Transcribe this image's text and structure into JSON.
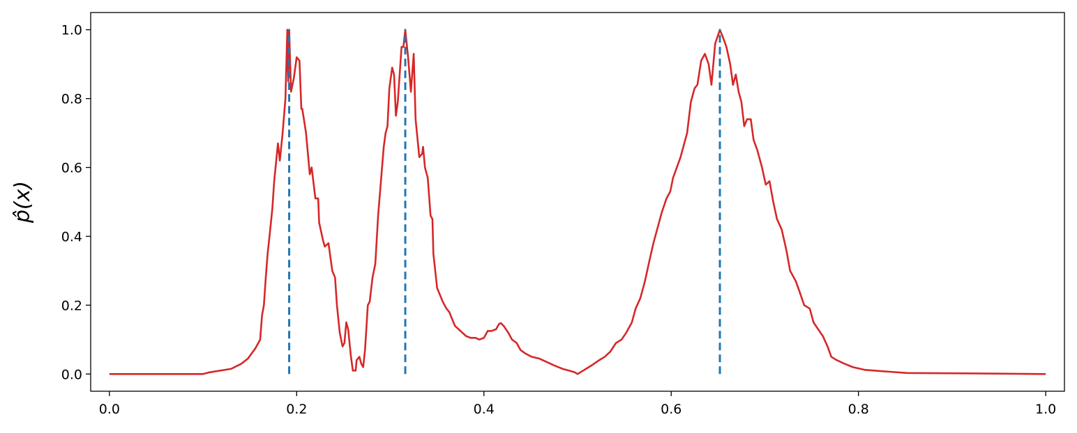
{
  "chart_data": {
    "type": "line",
    "ylabel": "p̂(x)",
    "x": [
      0,
      0.1,
      0.107,
      0.13,
      0.141,
      0.148,
      0.156,
      0.161,
      0.163,
      0.165,
      0.167,
      0.169,
      0.171,
      0.174,
      0.176,
      0.18,
      0.182,
      0.185,
      0.188,
      0.19,
      0.191,
      0.192,
      0.194,
      0.197,
      0.2,
      0.203,
      0.205,
      0.206,
      0.21,
      0.214,
      0.216,
      0.22,
      0.223,
      0.224,
      0.228,
      0.23,
      0.234,
      0.236,
      0.238,
      0.241,
      0.243,
      0.246,
      0.249,
      0.251,
      0.253,
      0.255,
      0.258,
      0.26,
      0.263,
      0.264,
      0.267,
      0.269,
      0.271,
      0.273,
      0.276,
      0.278,
      0.281,
      0.284,
      0.287,
      0.29,
      0.293,
      0.295,
      0.297,
      0.299,
      0.302,
      0.304,
      0.306,
      0.308,
      0.312,
      0.314,
      0.316,
      0.319,
      0.322,
      0.325,
      0.327,
      0.331,
      0.334,
      0.335,
      0.337,
      0.34,
      0.343,
      0.345,
      0.346,
      0.348,
      0.35,
      0.353,
      0.356,
      0.36,
      0.363,
      0.366,
      0.369,
      0.373,
      0.377,
      0.381,
      0.386,
      0.391,
      0.395,
      0.4,
      0.404,
      0.408,
      0.413,
      0.416,
      0.418,
      0.421,
      0.426,
      0.43,
      0.435,
      0.439,
      0.444,
      0.451,
      0.459,
      0.467,
      0.475,
      0.484,
      0.491,
      0.497,
      0.5,
      0.503,
      0.509,
      0.515,
      0.523,
      0.529,
      0.535,
      0.541,
      0.547,
      0.552,
      0.558,
      0.562,
      0.567,
      0.572,
      0.576,
      0.581,
      0.585,
      0.59,
      0.595,
      0.599,
      0.602,
      0.606,
      0.61,
      0.614,
      0.617,
      0.621,
      0.625,
      0.628,
      0.632,
      0.636,
      0.64,
      0.643,
      0.647,
      0.652,
      0.655,
      0.659,
      0.663,
      0.666,
      0.669,
      0.672,
      0.675,
      0.678,
      0.681,
      0.685,
      0.688,
      0.692,
      0.697,
      0.701,
      0.705,
      0.709,
      0.713,
      0.718,
      0.723,
      0.727,
      0.733,
      0.737,
      0.742,
      0.748,
      0.752,
      0.757,
      0.762,
      0.767,
      0.771,
      0.777,
      0.785,
      0.794,
      0.807,
      0.826,
      0.852,
      0.911,
      1.0
    ],
    "series": [
      {
        "color": "#d62728",
        "values": [
          0,
          0,
          0.005,
          0.015,
          0.03,
          0.045,
          0.075,
          0.1,
          0.17,
          0.2,
          0.28,
          0.35,
          0.4,
          0.48,
          0.56,
          0.67,
          0.62,
          0.7,
          0.8,
          1.0,
          0.85,
          1.0,
          0.82,
          0.86,
          0.92,
          0.91,
          0.77,
          0.77,
          0.7,
          0.58,
          0.6,
          0.51,
          0.51,
          0.44,
          0.39,
          0.37,
          0.38,
          0.34,
          0.3,
          0.28,
          0.2,
          0.12,
          0.08,
          0.09,
          0.15,
          0.13,
          0.05,
          0.01,
          0.01,
          0.04,
          0.05,
          0.03,
          0.02,
          0.07,
          0.2,
          0.21,
          0.28,
          0.32,
          0.46,
          0.56,
          0.66,
          0.7,
          0.72,
          0.83,
          0.89,
          0.87,
          0.75,
          0.79,
          0.95,
          0.95,
          1.0,
          0.92,
          0.82,
          0.93,
          0.74,
          0.63,
          0.64,
          0.66,
          0.6,
          0.57,
          0.46,
          0.45,
          0.35,
          0.3,
          0.25,
          0.23,
          0.21,
          0.19,
          0.18,
          0.16,
          0.14,
          0.13,
          0.12,
          0.11,
          0.105,
          0.105,
          0.1,
          0.105,
          0.125,
          0.125,
          0.13,
          0.145,
          0.148,
          0.14,
          0.12,
          0.1,
          0.09,
          0.07,
          0.06,
          0.05,
          0.045,
          0.035,
          0.025,
          0.015,
          0.01,
          0.005,
          0,
          0.005,
          0.015,
          0.025,
          0.04,
          0.05,
          0.065,
          0.09,
          0.1,
          0.12,
          0.15,
          0.19,
          0.22,
          0.27,
          0.32,
          0.38,
          0.42,
          0.47,
          0.51,
          0.53,
          0.57,
          0.6,
          0.63,
          0.67,
          0.7,
          0.79,
          0.83,
          0.84,
          0.91,
          0.93,
          0.9,
          0.84,
          0.96,
          1.0,
          0.98,
          0.95,
          0.9,
          0.84,
          0.87,
          0.82,
          0.79,
          0.72,
          0.74,
          0.74,
          0.68,
          0.65,
          0.6,
          0.55,
          0.56,
          0.5,
          0.45,
          0.42,
          0.36,
          0.3,
          0.27,
          0.24,
          0.2,
          0.19,
          0.15,
          0.13,
          0.11,
          0.08,
          0.05,
          0.04,
          0.03,
          0.02,
          0.012,
          0.008,
          0.003,
          0.002,
          0
        ]
      }
    ],
    "vlines": {
      "color": "#1f77b4",
      "x": [
        0.192,
        0.316,
        0.652
      ],
      "ymin": 0,
      "ymax": 1
    },
    "xlim": [
      -0.02,
      1.02
    ],
    "ylim": [
      -0.05,
      1.05
    ],
    "xticks": [
      {
        "value": 0,
        "label": "0.0"
      },
      0.2,
      0.4,
      0.6,
      0.8,
      {
        "value": 1,
        "label": "1.0"
      }
    ],
    "yticks": [
      {
        "value": 0,
        "label": "0.0"
      },
      0.2,
      0.4,
      0.6,
      0.8,
      {
        "value": 1,
        "label": "1.0"
      }
    ]
  }
}
